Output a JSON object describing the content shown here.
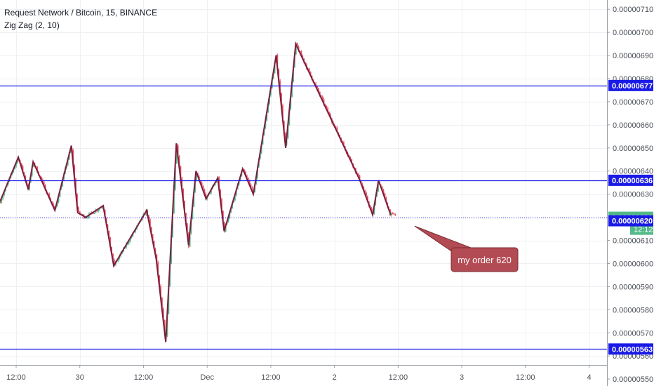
{
  "legend": {
    "title": "Request Network / Bitcoin, 15, BINANCE",
    "indicator": "Zig Zag (2, 10)"
  },
  "colors": {
    "up": "#53b987",
    "down": "#eb4d5c",
    "zigzag": "#7b1f3f",
    "hline": "#1a1ae6",
    "callout": "#b24b53",
    "price_tag": "#53b987",
    "hline_tag": "#1a1ae6"
  },
  "chart_data": {
    "type": "candlestick",
    "ylim": [
      5.47e-06,
      7.14e-06
    ],
    "y_ticks": [
      "0.00000710",
      "0.00000700",
      "0.00000690",
      "0.00000680",
      "0.00000670",
      "0.00000660",
      "0.00000650",
      "0.00000640",
      "0.00000630",
      "0.00000620",
      "0.00000610",
      "0.00000600",
      "0.00000590",
      "0.00000580",
      "0.00000570",
      "0.00000560",
      "0.00000550"
    ],
    "x_ticks": [
      {
        "label": "12:00",
        "t": 3
      },
      {
        "label": "30",
        "t": 15
      },
      {
        "label": "12:00",
        "t": 27
      },
      {
        "label": "Dec",
        "t": 39
      },
      {
        "label": "12:00",
        "t": 51
      },
      {
        "label": "2",
        "t": 63
      },
      {
        "label": "12:00",
        "t": 75
      },
      {
        "label": "3",
        "t": 87
      },
      {
        "label": "12:00",
        "t": 99
      },
      {
        "label": "4",
        "t": 111
      }
    ],
    "h_lines": [
      {
        "label": "0.00000677",
        "value": 6.77e-06
      },
      {
        "label": "0.00000636",
        "value": 6.36e-06
      },
      {
        "label": "0.00000563",
        "value": 5.63e-06
      }
    ],
    "current_price": {
      "label": "0.00000620",
      "value": 6.2e-06,
      "countdown": "12:12"
    },
    "order_label": {
      "label": "0.00000620",
      "value": 6.185e-06
    },
    "zigzag": [
      {
        "t": 0.0,
        "v": 6.27e-06
      },
      {
        "t": 3.4,
        "v": 6.46e-06
      },
      {
        "t": 5.3,
        "v": 6.32e-06
      },
      {
        "t": 6.2,
        "v": 6.44e-06
      },
      {
        "t": 10.3,
        "v": 6.23e-06
      },
      {
        "t": 13.4,
        "v": 6.51e-06
      },
      {
        "t": 14.6,
        "v": 6.22e-06
      },
      {
        "t": 16.1,
        "v": 6.2e-06
      },
      {
        "t": 19.4,
        "v": 6.25e-06
      },
      {
        "t": 21.4,
        "v": 5.99e-06
      },
      {
        "t": 27.6,
        "v": 6.23e-06
      },
      {
        "t": 29.4,
        "v": 6.02e-06
      },
      {
        "t": 31.2,
        "v": 5.66e-06
      },
      {
        "t": 33.2,
        "v": 6.52e-06
      },
      {
        "t": 35.5,
        "v": 6.08e-06
      },
      {
        "t": 36.9,
        "v": 6.4e-06
      },
      {
        "t": 38.8,
        "v": 6.28e-06
      },
      {
        "t": 41.0,
        "v": 6.37e-06
      },
      {
        "t": 42.2,
        "v": 6.14e-06
      },
      {
        "t": 45.7,
        "v": 6.41e-06
      },
      {
        "t": 47.7,
        "v": 6.3e-06
      },
      {
        "t": 52.0,
        "v": 6.9e-06
      },
      {
        "t": 53.8,
        "v": 6.5e-06
      },
      {
        "t": 55.7,
        "v": 6.95e-06
      },
      {
        "t": 67.8,
        "v": 6.36e-06
      },
      {
        "t": 70.2,
        "v": 6.21e-06
      },
      {
        "t": 71.3,
        "v": 6.36e-06
      },
      {
        "t": 73.6,
        "v": 6.21e-06
      }
    ],
    "annotations": [
      {
        "text": "my order 620",
        "anchor_t": 78.5,
        "anchor_v": 6.165e-06
      }
    ]
  }
}
